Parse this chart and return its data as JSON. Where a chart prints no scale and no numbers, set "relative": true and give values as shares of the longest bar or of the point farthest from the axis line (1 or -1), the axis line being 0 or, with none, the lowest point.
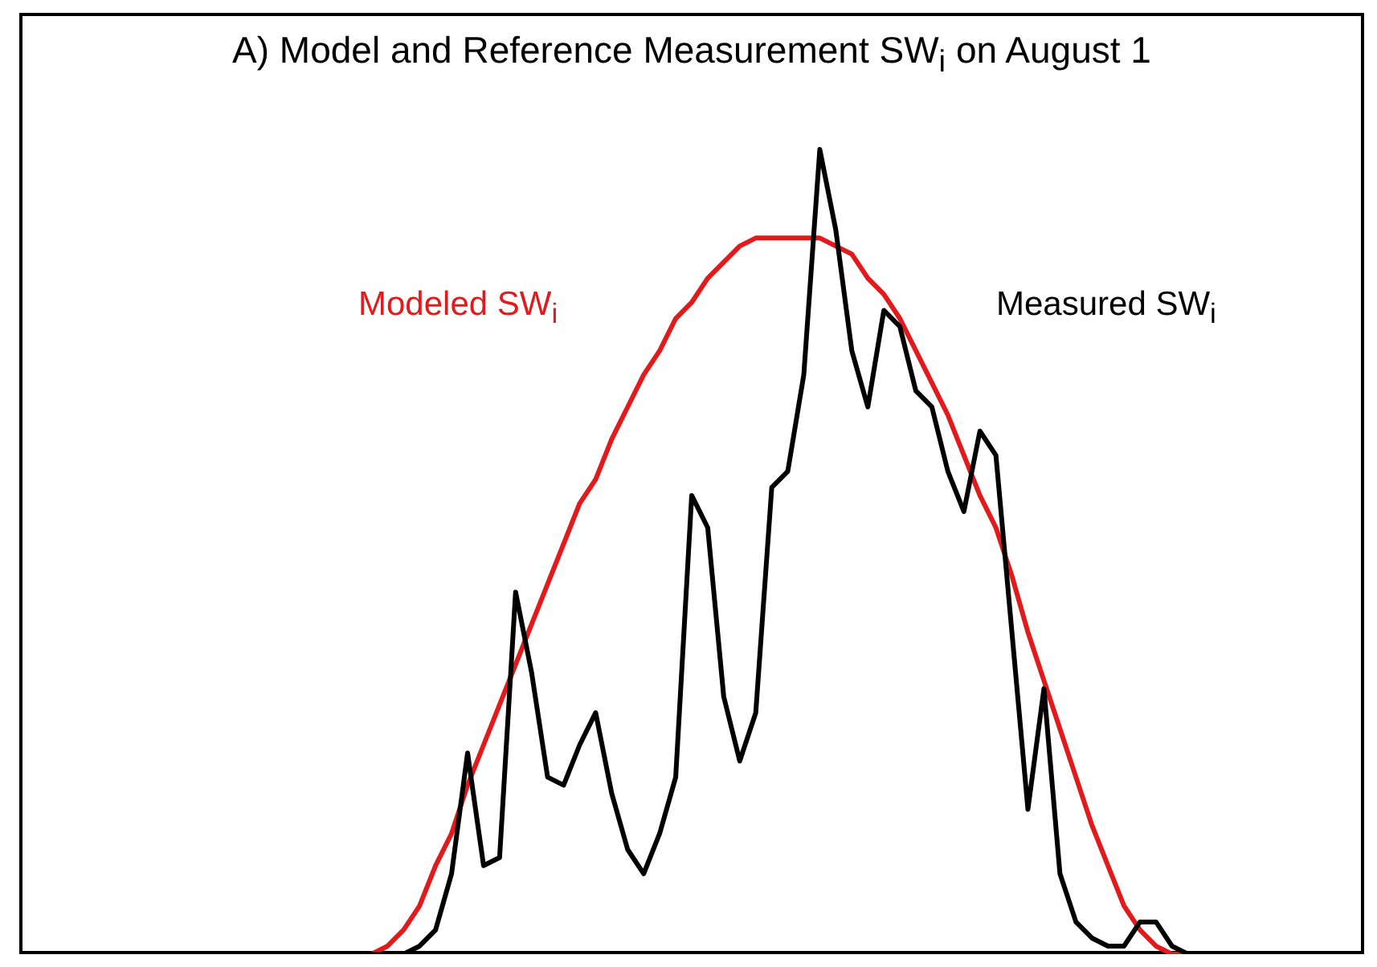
{
  "chart_data": {
    "type": "line",
    "title": "A) Model and Reference Measurement SW$_{i}$ on August 1",
    "relative": true,
    "tick_labels": false,
    "legend": false,
    "categories": [
      null,
      null,
      null,
      null,
      null,
      null,
      null,
      null,
      null,
      null,
      null,
      null,
      null,
      null,
      null,
      null,
      null,
      null,
      null,
      null,
      null,
      null,
      null,
      null,
      null,
      null,
      null,
      null,
      null,
      null,
      null,
      null,
      null,
      null,
      null,
      null,
      null,
      null,
      null,
      null,
      null,
      null,
      null,
      null,
      null,
      null,
      null,
      null,
      null,
      null,
      null,
      null,
      null,
      null,
      null,
      null,
      null,
      null,
      null,
      null,
      null,
      null,
      null,
      null,
      null,
      null,
      null,
      null,
      null,
      null,
      null,
      null,
      null,
      null,
      null,
      null,
      null,
      null,
      null,
      null,
      null,
      null,
      null,
      null,
      null
    ],
    "series": [
      {
        "name": "Modeled SW$_{i}$",
        "color": "#e31a1c",
        "values": [
          null,
          null,
          null,
          null,
          null,
          null,
          null,
          null,
          null,
          null,
          null,
          null,
          null,
          null,
          null,
          null,
          null,
          null,
          null,
          null,
          null,
          0,
          0,
          0.01,
          0.03,
          0.06,
          0.11,
          0.15,
          0.21,
          0.26,
          0.31,
          0.36,
          0.41,
          0.46,
          0.51,
          0.56,
          0.59,
          0.64,
          0.68,
          0.72,
          0.75,
          0.79,
          0.81,
          0.84,
          0.86,
          0.88,
          0.89,
          0.89,
          0.89,
          0.89,
          0.89,
          0.88,
          0.87,
          0.84,
          0.82,
          0.79,
          0.75,
          0.71,
          0.67,
          0.62,
          0.57,
          0.53,
          0.47,
          0.4,
          0.34,
          0.28,
          0.22,
          0.16,
          0.11,
          0.06,
          0.03,
          0.01,
          0,
          0,
          0,
          null,
          null,
          null,
          null,
          null,
          null,
          null,
          null,
          null,
          null
        ]
      },
      {
        "name": "Measured SW$_{i}$",
        "color": "#000000",
        "values": [
          0,
          0,
          0,
          0,
          0,
          0,
          0,
          0,
          0,
          0,
          0,
          0,
          0,
          0,
          0,
          0,
          0,
          0,
          0,
          0,
          0,
          0,
          0,
          0,
          0,
          0.01,
          0.03,
          0.1,
          0.25,
          0.11,
          0.12,
          0.45,
          0.35,
          0.22,
          0.21,
          0.26,
          0.3,
          0.2,
          0.13,
          0.1,
          0.15,
          0.22,
          0.57,
          0.53,
          0.32,
          0.24,
          0.3,
          0.58,
          0.6,
          0.72,
          1,
          0.9,
          0.75,
          0.68,
          0.8,
          0.78,
          0.7,
          0.68,
          0.6,
          0.55,
          0.65,
          0.62,
          0.4,
          0.18,
          0.33,
          0.1,
          0.04,
          0.02,
          0.01,
          0.01,
          0.04,
          0.04,
          0.01,
          0,
          0,
          0,
          0,
          0,
          0,
          0,
          0,
          0,
          0,
          0,
          0
        ]
      }
    ]
  }
}
